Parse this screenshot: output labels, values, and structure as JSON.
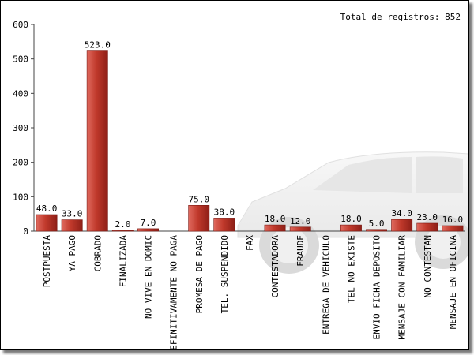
{
  "total_label": "Total de registros: 852",
  "colors": {
    "bar": "#c0392b",
    "bar_dark": "#8e1f17",
    "axis": "#333333"
  },
  "chart_data": {
    "type": "bar",
    "categories": [
      "POSTPUESTA",
      "YA PAGO",
      "COBRADO",
      "FINALIZADA",
      "NO VIVE EN DOMIC",
      "DEFINITIVAMENTE NO PAGA",
      "PROMESA DE PAGO",
      "TEL. SUSPENDIDO",
      "FAX",
      "CONTESTADORA",
      "FRAUDE",
      "ENTREGA DE VEHICULO",
      "TEL NO EXISTE",
      "ENVIO FICHA DEPOSITO",
      "MENSAJE CON FAMILIAR",
      "NO CONTESTAN",
      "MENSAJE EN OFICINA"
    ],
    "values": [
      48,
      33,
      523,
      2,
      7,
      0,
      75,
      38,
      0,
      18,
      12,
      0,
      18,
      5,
      34,
      23,
      16
    ],
    "value_labels": [
      "48.0",
      "33.0",
      "523.0",
      "2.0",
      "7.0",
      "",
      "75.0",
      "38.0",
      "",
      "18.0",
      "12.0",
      "",
      "18.0",
      "5.0",
      "34.0",
      "23.0",
      "16.0"
    ],
    "ylim": [
      0,
      600
    ],
    "yticks": [
      0,
      100,
      200,
      300,
      400,
      500,
      600
    ],
    "title": "",
    "xlabel": "",
    "ylabel": ""
  }
}
